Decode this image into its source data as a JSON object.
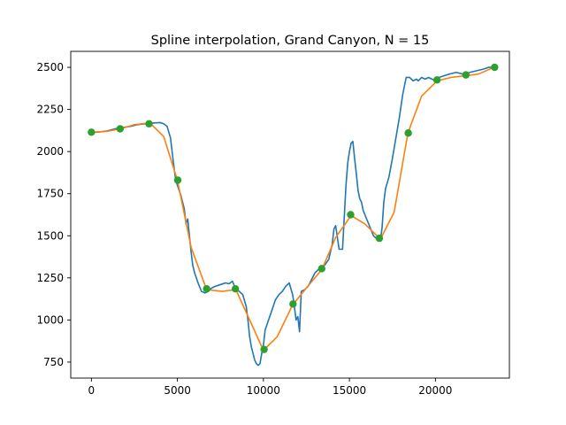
{
  "chart_data": {
    "type": "line",
    "title": "Spline interpolation, Grand Canyon, N = 15",
    "xlabel": "",
    "ylabel": "",
    "xlim": [
      -1200,
      24300
    ],
    "ylim": [
      655,
      2595
    ],
    "xticks": [
      0,
      5000,
      10000,
      15000,
      20000
    ],
    "xtick_labels": [
      "0",
      "5000",
      "10000",
      "15000",
      "20000"
    ],
    "yticks": [
      750,
      1000,
      1250,
      1500,
      1750,
      2000,
      2250,
      2500
    ],
    "ytick_labels": [
      "750",
      "1000",
      "1250",
      "1500",
      "1750",
      "2000",
      "2250",
      "2500"
    ],
    "grid": false,
    "legend": "none",
    "series": [
      {
        "kind": "line",
        "color": "#1f77b4",
        "x": [
          0,
          300,
          600,
          900,
          1200,
          1500,
          1700,
          2000,
          2300,
          2600,
          2900,
          3200,
          3400,
          3700,
          4000,
          4200,
          4400,
          4600,
          4750,
          4900,
          5000,
          5200,
          5400,
          5500,
          5600,
          5700,
          5800,
          5900,
          6000,
          6200,
          6400,
          6600,
          6800,
          7000,
          7200,
          7500,
          7800,
          8000,
          8200,
          8400,
          8600,
          8800,
          9000,
          9100,
          9200,
          9300,
          9400,
          9500,
          9600,
          9700,
          9800,
          9900,
          10000,
          10100,
          10300,
          10500,
          10700,
          10900,
          11100,
          11300,
          11500,
          11700,
          11800,
          11900,
          12000,
          12100,
          12200,
          12400,
          12600,
          12800,
          13000,
          13200,
          13400,
          13600,
          13800,
          14000,
          14100,
          14200,
          14400,
          14600,
          14800,
          14900,
          15000,
          15100,
          15200,
          15300,
          15400,
          15500,
          15600,
          15700,
          15800,
          16000,
          16200,
          16400,
          16600,
          16800,
          16900,
          17000,
          17100,
          17300,
          17500,
          17700,
          17900,
          18100,
          18300,
          18500,
          18700,
          18900,
          19000,
          19200,
          19400,
          19600,
          19800,
          20000,
          20200,
          20500,
          20800,
          21200,
          21600,
          22000,
          22400,
          22800,
          23100,
          23400
        ],
        "y": [
          2115,
          2115,
          2118,
          2122,
          2130,
          2138,
          2140,
          2145,
          2150,
          2158,
          2163,
          2165,
          2168,
          2170,
          2172,
          2165,
          2150,
          2080,
          1950,
          1830,
          1800,
          1740,
          1660,
          1570,
          1600,
          1500,
          1400,
          1320,
          1280,
          1220,
          1170,
          1160,
          1170,
          1190,
          1200,
          1210,
          1220,
          1215,
          1230,
          1180,
          1170,
          1150,
          1080,
          1000,
          900,
          840,
          800,
          760,
          740,
          730,
          740,
          800,
          850,
          940,
          1000,
          1060,
          1120,
          1150,
          1170,
          1200,
          1220,
          1150,
          1080,
          1000,
          1020,
          930,
          1170,
          1180,
          1200,
          1240,
          1280,
          1300,
          1310,
          1330,
          1360,
          1450,
          1540,
          1560,
          1420,
          1420,
          1800,
          1930,
          2000,
          2050,
          2060,
          1960,
          1870,
          1770,
          1720,
          1700,
          1650,
          1600,
          1550,
          1500,
          1480,
          1470,
          1550,
          1700,
          1780,
          1850,
          1960,
          2080,
          2200,
          2340,
          2440,
          2440,
          2420,
          2430,
          2420,
          2440,
          2430,
          2440,
          2430,
          2420,
          2440,
          2450,
          2460,
          2470,
          2460,
          2470,
          2480,
          2490,
          2500,
          2500
        ]
      },
      {
        "kind": "line",
        "color": "#ff7f0e",
        "x": [
          0,
          900,
          1700,
          2500,
          3400,
          4200,
          5000,
          5800,
          6700,
          7600,
          8400,
          9200,
          10000,
          10800,
          11700,
          12500,
          13400,
          14200,
          15100,
          15900,
          16800,
          17600,
          18400,
          19200,
          20100,
          20900,
          21700,
          22500,
          23400
        ],
        "y": [
          2115,
          2120,
          2135,
          2160,
          2170,
          2090,
          1830,
          1430,
          1180,
          1170,
          1180,
          1000,
          820,
          900,
          1090,
          1190,
          1300,
          1490,
          1620,
          1570,
          1480,
          1640,
          2110,
          2330,
          2420,
          2440,
          2450,
          2460,
          2500
        ]
      },
      {
        "kind": "scatter",
        "color": "#2ca02c",
        "x": [
          0,
          1670,
          3350,
          5020,
          6700,
          8370,
          10040,
          11720,
          13390,
          15070,
          16740,
          18420,
          20090,
          21770,
          23440
        ],
        "y": [
          2115,
          2135,
          2165,
          1830,
          1185,
          1185,
          825,
          1095,
          1305,
          1625,
          1485,
          2110,
          2425,
          2455,
          2500
        ]
      }
    ]
  }
}
